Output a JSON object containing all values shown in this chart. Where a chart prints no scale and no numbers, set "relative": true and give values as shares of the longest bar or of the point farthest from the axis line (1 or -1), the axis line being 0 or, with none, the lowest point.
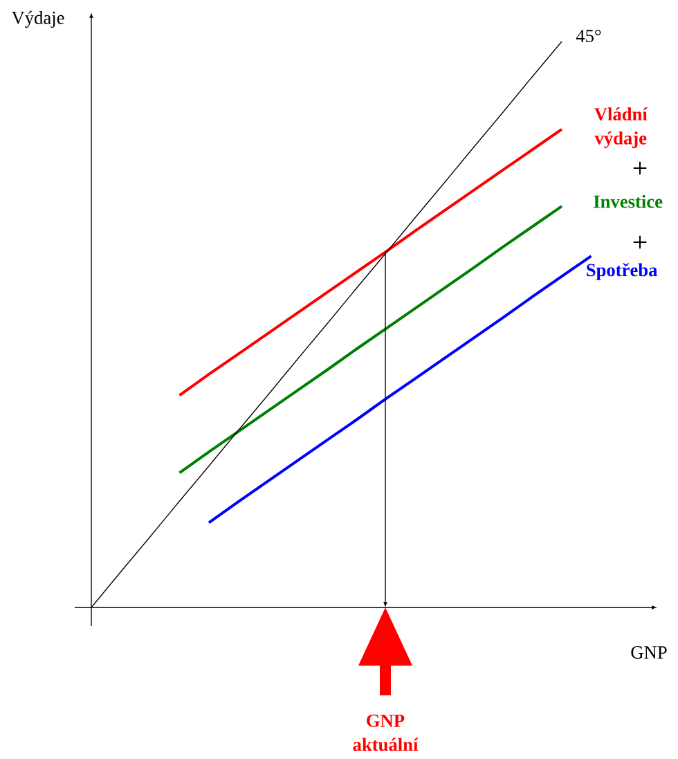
{
  "chart_data": {
    "type": "line",
    "relative": true,
    "xlabel": "GNP",
    "ylabel": "Výdaje",
    "marker": "none",
    "categories": [
      null,
      null,
      null,
      null,
      null,
      null,
      null,
      null,
      null,
      null,
      null,
      null,
      null,
      null,
      null,
      null,
      null,
      null,
      null,
      null
    ],
    "series": [
      {
        "name": "Vládní výdaje",
        "color": "#ff0000",
        "values": [
          null,
          null,
          null,
          0.375,
          0.412,
          0.448,
          0.484,
          0.52,
          0.556,
          0.592,
          0.628,
          0.665,
          0.701,
          0.737,
          0.773,
          0.809,
          0.845,
          null,
          null,
          null
        ]
      },
      {
        "name": "Investice",
        "color": "#008000",
        "values": [
          null,
          null,
          null,
          0.238,
          0.275,
          0.311,
          0.347,
          0.383,
          0.419,
          0.456,
          0.492,
          0.528,
          0.564,
          0.6,
          0.637,
          0.673,
          0.709,
          null,
          null,
          null
        ]
      },
      {
        "name": "Spotřeba",
        "color": "#0000ff",
        "values": [
          null,
          null,
          null,
          null,
          0.15,
          0.187,
          0.223,
          0.259,
          0.295,
          0.331,
          0.368,
          0.404,
          0.44,
          0.476,
          0.512,
          0.549,
          0.585,
          0.621,
          null,
          null
        ]
      },
      {
        "name": "45°",
        "color": "#000000",
        "values": [
          0,
          0.063,
          0.125,
          0.188,
          0.25,
          0.313,
          0.375,
          0.438,
          0.5,
          0.563,
          0.625,
          0.688,
          0.75,
          0.813,
          0.875,
          0.938,
          1,
          null,
          null,
          null
        ]
      }
    ],
    "annotations": [
      "+",
      "+",
      "GNP aktuální"
    ]
  }
}
